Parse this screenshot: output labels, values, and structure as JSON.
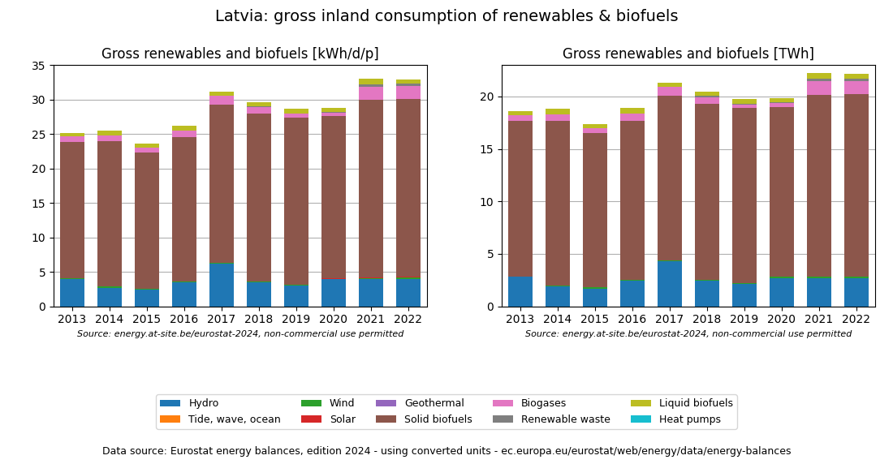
{
  "title": "Latvia: gross inland consumption of renewables & biofuels",
  "annotations": [
    "Data source: Eurostat energy balances, edition 2024 - using converted units - ec.europa.eu/eurostat/web/energy/data/energy-balances"
  ],
  "legend": "lower center",
  "chart_data": [
    {
      "type": "bar",
      "stacked": true,
      "grid": true,
      "title": "Gross renewables and biofuels [kWh/d/p]",
      "annotations": [
        "Source: energy.at-site.be/eurostat-2024, non-commercial use permitted"
      ],
      "categories": [
        "2013",
        "2014",
        "2015",
        "2016",
        "2017",
        "2018",
        "2019",
        "2020",
        "2021",
        "2022"
      ],
      "series": [
        {
          "name": "Hydro",
          "values": [
            4.0,
            2.7,
            2.4,
            3.5,
            6.2,
            3.5,
            3.0,
            3.9,
            3.9,
            4.0
          ]
        },
        {
          "name": "Tide, wave, ocean",
          "values": [
            0.0,
            0.0,
            0.0,
            0.0,
            0.0,
            0.0,
            0.0,
            0.0,
            0.0,
            0.0
          ]
        },
        {
          "name": "Wind",
          "values": [
            0.05,
            0.2,
            0.1,
            0.1,
            0.1,
            0.1,
            0.1,
            0.1,
            0.15,
            0.2
          ]
        },
        {
          "name": "Solar",
          "values": [
            0.0,
            0.0,
            0.0,
            0.0,
            0.0,
            0.0,
            0.0,
            0.05,
            0.1,
            0.1
          ]
        },
        {
          "name": "Geothermal",
          "values": [
            0.0,
            0.0,
            0.0,
            0.0,
            0.0,
            0.0,
            0.0,
            0.0,
            0.0,
            0.0
          ]
        },
        {
          "name": "Solid biofuels",
          "values": [
            19.8,
            21.1,
            19.8,
            20.9,
            23.0,
            24.4,
            24.3,
            23.5,
            25.8,
            25.8
          ]
        },
        {
          "name": "Biogases",
          "values": [
            0.8,
            0.8,
            0.7,
            1.0,
            1.2,
            0.9,
            0.5,
            0.5,
            1.9,
            1.8
          ]
        },
        {
          "name": "Renewable waste",
          "values": [
            0.0,
            0.0,
            0.0,
            0.0,
            0.0,
            0.15,
            0.1,
            0.1,
            0.35,
            0.4
          ]
        },
        {
          "name": "Liquid biofuels",
          "values": [
            0.5,
            0.7,
            0.6,
            0.7,
            0.6,
            0.6,
            0.6,
            0.6,
            0.85,
            0.6
          ]
        },
        {
          "name": "Heat pumps",
          "values": [
            0.0,
            0.0,
            0.0,
            0.0,
            0.0,
            0.0,
            0.0,
            0.0,
            0.0,
            0.0
          ]
        }
      ],
      "ylim": [
        0,
        35
      ],
      "yticks": [
        0,
        5,
        10,
        15,
        20,
        25,
        30,
        35
      ]
    },
    {
      "type": "bar",
      "stacked": true,
      "grid": true,
      "title": "Gross renewables and biofuels [TWh]",
      "annotations": [
        "Source: energy.at-site.be/eurostat-2024, non-commercial use permitted"
      ],
      "categories": [
        "2013",
        "2014",
        "2015",
        "2016",
        "2017",
        "2018",
        "2019",
        "2020",
        "2021",
        "2022"
      ],
      "series": [
        {
          "name": "Hydro",
          "values": [
            2.8,
            1.9,
            1.7,
            2.4,
            4.3,
            2.4,
            2.1,
            2.7,
            2.7,
            2.7
          ]
        },
        {
          "name": "Tide, wave, ocean",
          "values": [
            0.0,
            0.0,
            0.0,
            0.0,
            0.0,
            0.0,
            0.0,
            0.0,
            0.0,
            0.0
          ]
        },
        {
          "name": "Wind",
          "values": [
            0.05,
            0.1,
            0.1,
            0.1,
            0.1,
            0.1,
            0.1,
            0.1,
            0.1,
            0.1
          ]
        },
        {
          "name": "Solar",
          "values": [
            0.0,
            0.0,
            0.0,
            0.0,
            0.0,
            0.0,
            0.0,
            0.0,
            0.04,
            0.04
          ]
        },
        {
          "name": "Geothermal",
          "values": [
            0.0,
            0.0,
            0.0,
            0.0,
            0.0,
            0.0,
            0.0,
            0.0,
            0.0,
            0.0
          ]
        },
        {
          "name": "Solid biofuels",
          "values": [
            14.8,
            15.7,
            14.7,
            15.2,
            15.7,
            16.8,
            16.7,
            16.2,
            17.3,
            17.4
          ]
        },
        {
          "name": "Biogases",
          "values": [
            0.6,
            0.6,
            0.5,
            0.7,
            0.8,
            0.65,
            0.35,
            0.35,
            1.3,
            1.2
          ]
        },
        {
          "name": "Renewable waste",
          "values": [
            0.0,
            0.0,
            0.0,
            0.0,
            0.0,
            0.1,
            0.07,
            0.07,
            0.24,
            0.28
          ]
        },
        {
          "name": "Liquid biofuels",
          "values": [
            0.35,
            0.5,
            0.4,
            0.5,
            0.4,
            0.4,
            0.4,
            0.4,
            0.58,
            0.4
          ]
        },
        {
          "name": "Heat pumps",
          "values": [
            0.0,
            0.0,
            0.0,
            0.0,
            0.0,
            0.0,
            0.0,
            0.05,
            0.0,
            0.0
          ]
        }
      ],
      "ylim": [
        0,
        23
      ],
      "yticks": [
        0,
        5,
        10,
        15,
        20
      ]
    }
  ]
}
